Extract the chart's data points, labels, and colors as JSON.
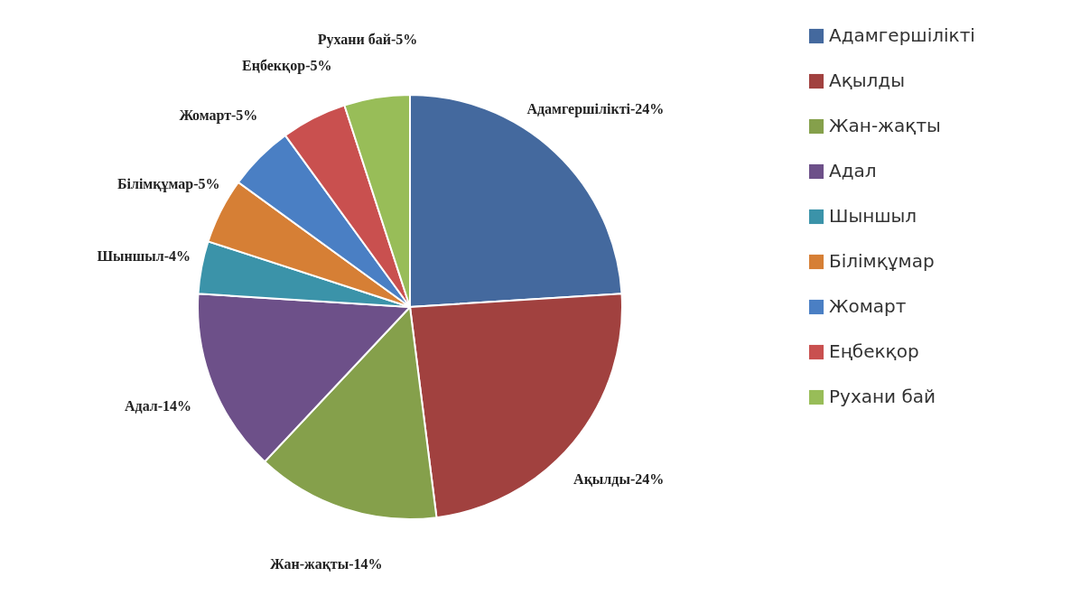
{
  "chart_data": {
    "type": "pie",
    "categories": [
      "Адамгершілікті",
      "Ақылды",
      "Жан-жақты",
      "Адал",
      "Шыншыл",
      "Білімқұмар",
      "Жомарт",
      "Еңбекқор",
      "Рухани бай"
    ],
    "values": [
      24,
      24,
      14,
      14,
      4,
      5,
      5,
      5,
      5
    ],
    "colors": [
      "#44699e",
      "#a1413f",
      "#85a04b",
      "#6d5089",
      "#3b93a9",
      "#d67f35",
      "#4a7fc4",
      "#c9504f",
      "#98bd58"
    ],
    "value_labels": [
      "Адамгершілікті-24%",
      "Ақылды-24%",
      "Жан-жақты-14%",
      "Адал-14%",
      "Шыншыл-4%",
      "Білімқұмар-5%",
      "Жомарт-5%",
      "Еңбекқор-5%",
      "Рухани бай-5%"
    ],
    "legend": "right"
  }
}
